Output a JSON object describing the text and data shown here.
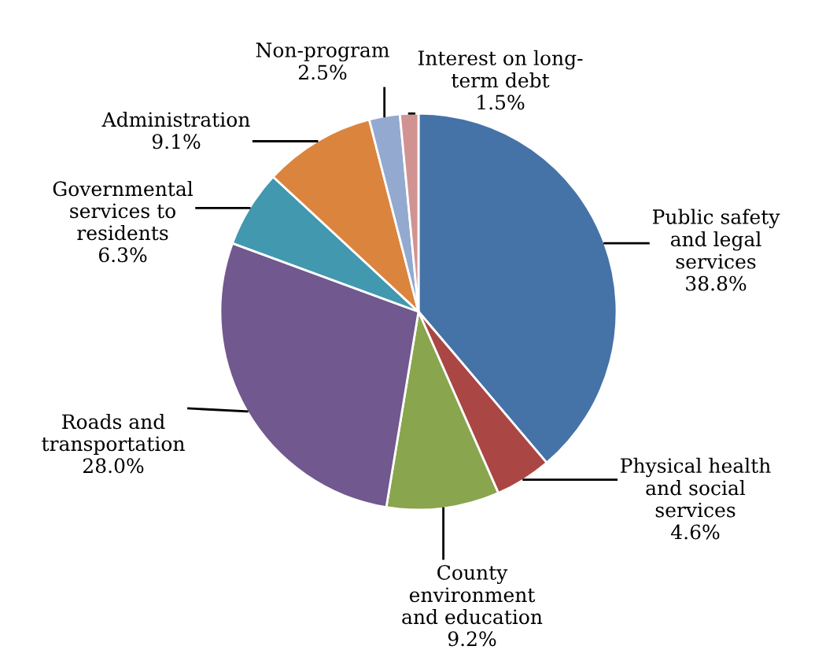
{
  "chart_data": {
    "type": "pie",
    "categories": [
      "Public safety\nand legal\nservices",
      "Physical health\nand social\nservices",
      "County\nenvironment\nand education",
      "Roads and\ntransportation",
      "Governmental\nservices to\nresidents",
      "Administration",
      "Non-program",
      "Interest on long-\nterm debt"
    ],
    "values": [
      38.8,
      4.6,
      9.2,
      28.0,
      6.3,
      9.1,
      2.5,
      1.5
    ],
    "value_labels": [
      "38.8%",
      "4.6%",
      "9.2%",
      "28.0%",
      "6.3%",
      "9.1%",
      "2.5%",
      "1.5%"
    ],
    "colors": [
      "#4572a7",
      "#aa4643",
      "#89a54e",
      "#71588f",
      "#4198af",
      "#db843d",
      "#93a9cf",
      "#d19392"
    ],
    "legend": false
  }
}
